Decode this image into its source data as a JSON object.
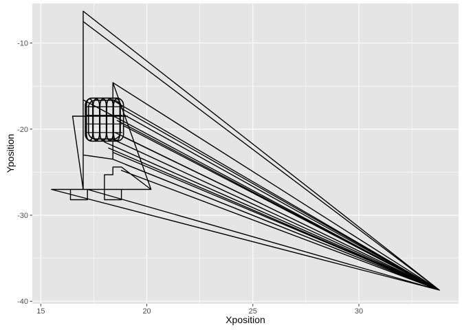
{
  "chart_data": {
    "type": "line",
    "title": "",
    "xlabel": "Xposition",
    "ylabel": "Yposition",
    "xlim": [
      14.6,
      34.7
    ],
    "ylim": [
      -40.3,
      -5.4
    ],
    "x_ticks": [
      15,
      20,
      25,
      30
    ],
    "y_ticks": [
      -10,
      -20,
      -30,
      -40
    ],
    "grid": true,
    "panel_background": "#e5e5e5",
    "grid_color": "#ffffff",
    "line_color": "#000000",
    "series": [
      {
        "values": [
          {
            "x": 17.0,
            "y": -6.3
          },
          {
            "x": 33.8,
            "y": -38.7
          },
          {
            "x": 17.0,
            "y": -7.5
          },
          {
            "x": 33.8,
            "y": -38.7
          },
          {
            "x": 17.0,
            "y": -16.6
          },
          {
            "x": 33.8,
            "y": -38.7
          },
          {
            "x": 18.4,
            "y": -14.6
          },
          {
            "x": 33.8,
            "y": -38.7
          },
          {
            "x": 18.5,
            "y": -16.8
          },
          {
            "x": 33.8,
            "y": -38.7
          },
          {
            "x": 18.8,
            "y": -17.6
          },
          {
            "x": 33.8,
            "y": -38.7
          },
          {
            "x": 18.9,
            "y": -18.3
          },
          {
            "x": 33.8,
            "y": -38.7
          },
          {
            "x": 18.6,
            "y": -19.0
          },
          {
            "x": 33.8,
            "y": -38.7
          },
          {
            "x": 18.9,
            "y": -19.6
          },
          {
            "x": 33.8,
            "y": -38.7
          },
          {
            "x": 18.5,
            "y": -20.4
          },
          {
            "x": 33.8,
            "y": -38.7
          },
          {
            "x": 18.9,
            "y": -20.9
          },
          {
            "x": 33.8,
            "y": -38.7
          },
          {
            "x": 18.4,
            "y": -21.2
          },
          {
            "x": 33.8,
            "y": -38.7
          },
          {
            "x": 18.0,
            "y": -21.5
          },
          {
            "x": 33.8,
            "y": -38.7
          },
          {
            "x": 18.2,
            "y": -22.2
          },
          {
            "x": 33.8,
            "y": -38.7
          },
          {
            "x": 18.4,
            "y": -22.7
          },
          {
            "x": 33.8,
            "y": -38.7
          },
          {
            "x": 18.4,
            "y": -23.5
          },
          {
            "x": 33.8,
            "y": -38.7
          },
          {
            "x": 19.0,
            "y": -24.1
          },
          {
            "x": 33.8,
            "y": -38.7
          },
          {
            "x": 18.8,
            "y": -24.8
          },
          {
            "x": 33.8,
            "y": -38.7
          },
          {
            "x": 17.2,
            "y": -27.0
          },
          {
            "x": 33.8,
            "y": -38.7
          },
          {
            "x": 15.5,
            "y": -27.0
          },
          {
            "x": 20.2,
            "y": -27.0
          },
          {
            "x": 17.2,
            "y": -27.0
          },
          {
            "x": 17.2,
            "y": -28.2
          },
          {
            "x": 16.4,
            "y": -28.2
          },
          {
            "x": 16.4,
            "y": -27.0
          },
          {
            "x": 18.0,
            "y": -27.0
          },
          {
            "x": 18.0,
            "y": -28.2
          },
          {
            "x": 18.8,
            "y": -28.2
          },
          {
            "x": 18.8,
            "y": -27.0
          },
          {
            "x": 18.0,
            "y": -27.0
          },
          {
            "x": 18.0,
            "y": -25.3
          },
          {
            "x": 18.4,
            "y": -25.3
          },
          {
            "x": 18.4,
            "y": -24.4
          },
          {
            "x": 18.8,
            "y": -24.4
          },
          {
            "x": 20.2,
            "y": -27.0
          },
          {
            "x": 18.4,
            "y": -14.6
          },
          {
            "x": 18.4,
            "y": -23.5
          },
          {
            "x": 17.0,
            "y": -23.0
          },
          {
            "x": 17.0,
            "y": -6.3
          },
          {
            "x": 17.0,
            "y": -27.0
          },
          {
            "x": 16.5,
            "y": -18.5
          },
          {
            "x": 19.1,
            "y": -18.5
          }
        ]
      }
    ]
  }
}
